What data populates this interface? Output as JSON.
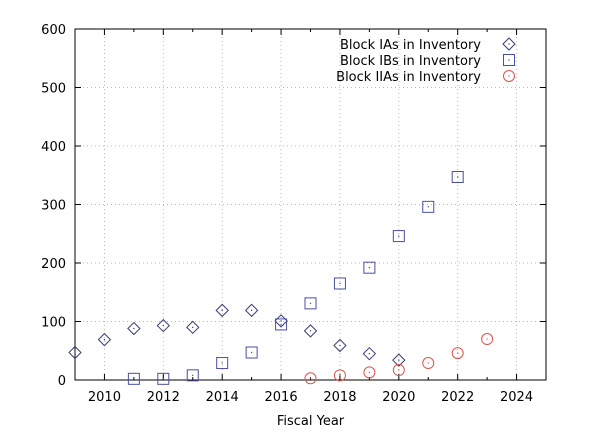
{
  "chart_data": {
    "type": "scatter",
    "title": "",
    "xlabel": "Fiscal Year",
    "ylabel": "",
    "xlim": [
      2009,
      2025
    ],
    "ylim": [
      0,
      600
    ],
    "x_ticks": [
      2010,
      2012,
      2014,
      2016,
      2018,
      2020,
      2022,
      2024
    ],
    "y_ticks": [
      0,
      100,
      200,
      300,
      400,
      500,
      600
    ],
    "grid": true,
    "legend_position": "top-right",
    "series": [
      {
        "name": "Block IAs in Inventory",
        "marker": "diamond",
        "color": "#3a3f74",
        "x": [
          2009,
          2010,
          2011,
          2012,
          2013,
          2014,
          2015,
          2016,
          2017,
          2018,
          2019,
          2020
        ],
        "y": [
          47,
          69,
          88,
          93,
          90,
          119,
          119,
          101,
          84,
          59,
          45,
          34
        ]
      },
      {
        "name": "Block IBs in Inventory",
        "marker": "square",
        "color": "#4a4fa0",
        "x": [
          2011,
          2012,
          2013,
          2014,
          2015,
          2016,
          2017,
          2018,
          2019,
          2020,
          2021,
          2022
        ],
        "y": [
          2,
          2,
          8,
          29,
          47,
          95,
          131,
          165,
          192,
          246,
          296,
          347
        ]
      },
      {
        "name": "Block IIAs in Inventory",
        "marker": "circle",
        "color": "#d9534f",
        "x": [
          2017,
          2018,
          2019,
          2020,
          2021,
          2022,
          2023
        ],
        "y": [
          3,
          8,
          13,
          17,
          29,
          46,
          70
        ]
      }
    ]
  }
}
